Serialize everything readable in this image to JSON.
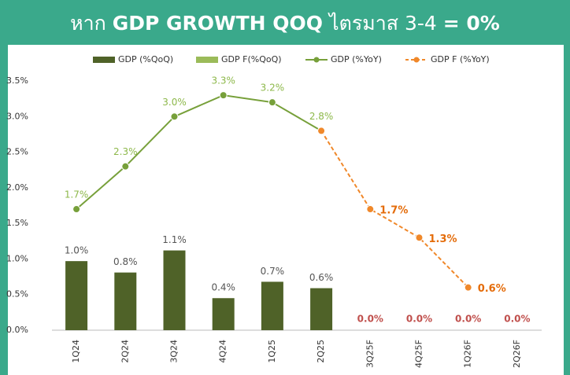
{
  "chart_data": {
    "type": "combo",
    "title": [
      "หาก",
      "GDP GROWTH QOQ",
      "ไตรมาส 3-4",
      "= 0%"
    ],
    "categories": [
      "1Q24",
      "2Q24",
      "3Q24",
      "4Q24",
      "1Q25",
      "2Q25",
      "3Q25F",
      "4Q25F",
      "1Q26F",
      "2Q26F"
    ],
    "ylim": [
      0,
      3.5
    ],
    "yticks": [
      {
        "value": 0,
        "label": "0.0%"
      },
      {
        "value": 0.5,
        "label": "0.5%"
      },
      {
        "value": 1,
        "label": "1.0%"
      },
      {
        "value": 1.5,
        "label": "1.5%"
      },
      {
        "value": 2,
        "label": "2.0%"
      },
      {
        "value": 2.5,
        "label": "2.5%"
      },
      {
        "value": 3,
        "label": "3.0%"
      },
      {
        "value": 3.5,
        "label": "3.5%"
      }
    ],
    "series": [
      {
        "name": "GDP (%QoQ)",
        "type": "bar",
        "color": "#4f6228",
        "label_color": "#555555",
        "values": [
          0.97,
          0.81,
          1.12,
          0.45,
          0.68,
          0.59,
          null,
          null,
          null,
          null
        ],
        "value_labels": [
          "1.0%",
          "0.8%",
          "1.1%",
          "0.4%",
          "0.7%",
          "0.6%",
          null,
          null,
          null,
          null
        ]
      },
      {
        "name": "GDP F(%QoQ)",
        "type": "bar",
        "color": "#9bbb59",
        "label_color": "#c0504d",
        "values": [
          null,
          null,
          null,
          null,
          null,
          null,
          0,
          0,
          0,
          0
        ],
        "value_labels": [
          null,
          null,
          null,
          null,
          null,
          null,
          "0.0%",
          "0.0%",
          "0.0%",
          "0.0%"
        ]
      },
      {
        "name": "GDP (%YoY)",
        "type": "line",
        "color": "#77a03a",
        "label_color": "#8db84a",
        "values": [
          1.7,
          2.3,
          3.0,
          3.3,
          3.2,
          2.8,
          null,
          null,
          null,
          null
        ],
        "value_labels": [
          "1.7%",
          "2.3%",
          "3.0%",
          "3.3%",
          "3.2%",
          "2.8%",
          null,
          null,
          null,
          null
        ]
      },
      {
        "name": "GDP F (%YoY)",
        "type": "line",
        "dashed": true,
        "color": "#f0882a",
        "label_color": "#e46c0a",
        "values": [
          null,
          null,
          null,
          null,
          null,
          2.8,
          1.7,
          1.3,
          0.6,
          null
        ],
        "value_labels": [
          null,
          null,
          null,
          null,
          null,
          null,
          "1.7%",
          "1.3%",
          "0.6%",
          null
        ]
      }
    ]
  }
}
